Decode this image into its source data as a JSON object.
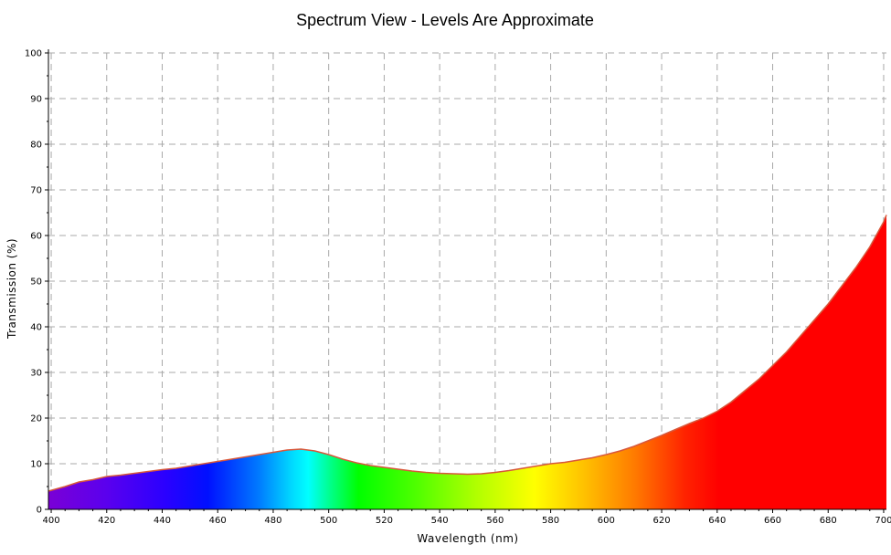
{
  "chart_data": {
    "type": "area",
    "title": "Spectrum View - Levels Are Approximate",
    "xlabel": "Wavelength (nm)",
    "ylabel": "Transmission (%)",
    "xlim": [
      399,
      701
    ],
    "ylim": [
      0,
      100
    ],
    "x_ticks": [
      400,
      420,
      440,
      460,
      480,
      500,
      520,
      540,
      560,
      580,
      600,
      620,
      640,
      660,
      680,
      700
    ],
    "y_ticks": [
      0,
      10,
      20,
      30,
      40,
      50,
      60,
      70,
      80,
      90,
      100
    ],
    "grid": true,
    "legend": "none",
    "fill": "visible spectrum gradient by wavelength",
    "outline_color": "#d8573a",
    "series": [
      {
        "x": [
          399,
          405,
          410,
          415,
          420,
          425,
          430,
          435,
          440,
          445,
          450,
          455,
          460,
          465,
          470,
          475,
          480,
          485,
          490,
          495,
          500,
          505,
          510,
          515,
          520,
          525,
          530,
          535,
          540,
          545,
          550,
          555,
          560,
          565,
          570,
          575,
          580,
          585,
          590,
          595,
          600,
          605,
          610,
          615,
          620,
          625,
          630,
          635,
          640,
          645,
          650,
          655,
          660,
          665,
          670,
          675,
          680,
          685,
          690,
          695,
          700,
          701
        ],
        "y": [
          4.0,
          5.0,
          6.0,
          6.5,
          7.2,
          7.5,
          7.9,
          8.3,
          8.7,
          9.0,
          9.5,
          10.0,
          10.5,
          11.0,
          11.5,
          12.0,
          12.5,
          13.0,
          13.2,
          12.8,
          12.0,
          11.0,
          10.2,
          9.6,
          9.2,
          8.8,
          8.4,
          8.1,
          7.9,
          7.8,
          7.7,
          7.8,
          8.1,
          8.5,
          9.0,
          9.5,
          10.0,
          10.3,
          10.8,
          11.3,
          12.0,
          12.8,
          13.8,
          15.0,
          16.2,
          17.5,
          18.8,
          20.0,
          21.5,
          23.5,
          26.0,
          28.5,
          31.5,
          34.5,
          38.0,
          41.5,
          45.0,
          49.0,
          53.0,
          57.5,
          63.0,
          64.5
        ]
      }
    ]
  }
}
